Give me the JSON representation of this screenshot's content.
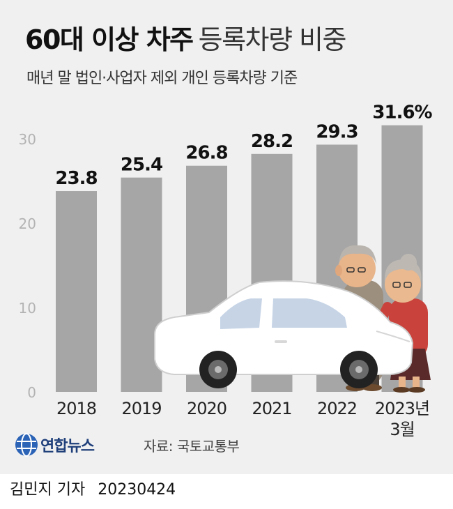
{
  "title": {
    "bold": "60대 이상 차주",
    "light": "등록차량 비중"
  },
  "subtitle": "매년 말 법인·사업자 제외 개인 등록차량 기준",
  "chart_data": {
    "type": "bar",
    "categories": [
      "2018",
      "2019",
      "2020",
      "2021",
      "2022",
      "2023년 3월"
    ],
    "category_lines": [
      [
        "2018"
      ],
      [
        "2019"
      ],
      [
        "2020"
      ],
      [
        "2021"
      ],
      [
        "2022"
      ],
      [
        "2023년",
        "3월"
      ]
    ],
    "values": [
      23.8,
      25.4,
      26.8,
      28.2,
      29.3,
      31.6
    ],
    "data_labels": [
      "23.8",
      "25.4",
      "26.8",
      "28.2",
      "29.3",
      "31.6%"
    ],
    "ylim": [
      0,
      30
    ],
    "yticks": [
      "0",
      "10",
      "20",
      "30"
    ],
    "unit": "%",
    "grid": false,
    "bar_color": "#a6a6a6"
  },
  "logo": {
    "text": "연합뉴스"
  },
  "source": "자료: 국토교통부",
  "footer": {
    "byline": "김민지 기자",
    "date": "20230424"
  },
  "illustration": {
    "car": "white-sedan-icon",
    "people": "elderly-couple-icon"
  }
}
